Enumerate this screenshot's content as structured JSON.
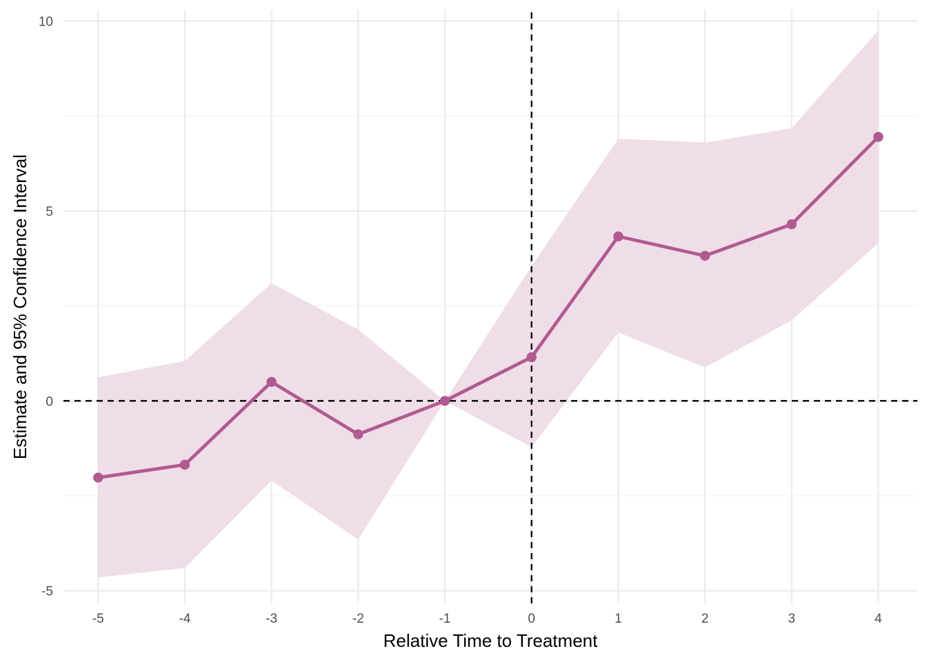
{
  "chart_data": {
    "type": "line",
    "title": "",
    "xlabel": "Relative Time to Treatment",
    "ylabel": "Estimate and 95% Confidence Interval",
    "x": [
      -5,
      -4,
      -3,
      -2,
      -1,
      0,
      1,
      2,
      3,
      4
    ],
    "xticks": [
      "-5",
      "-4",
      "-3",
      "-2",
      "-1",
      "0",
      "1",
      "2",
      "3",
      "4"
    ],
    "yticks": [
      "-5",
      "0",
      "5",
      "10"
    ],
    "ytick_values": [
      -5,
      0,
      5,
      10
    ],
    "xlim": [
      -5.4,
      4.45
    ],
    "ylim": [
      -5.35,
      10.3
    ],
    "grid": true,
    "reference_lines": {
      "y": 0,
      "x": 0,
      "style": "dashed"
    },
    "series": [
      {
        "estimate": [
          -2.02,
          -1.68,
          0.5,
          -0.88,
          0.0,
          1.15,
          4.33,
          3.82,
          4.65,
          6.95
        ],
        "ci_lower": [
          -4.65,
          -4.4,
          -2.1,
          -3.65,
          0.0,
          -1.22,
          1.8,
          0.88,
          2.12,
          4.15
        ],
        "ci_upper": [
          0.62,
          1.05,
          3.1,
          1.88,
          0.0,
          3.55,
          6.9,
          6.8,
          7.18,
          9.75
        ],
        "color": "#b05a91",
        "band_color": "#efdde8"
      }
    ]
  }
}
